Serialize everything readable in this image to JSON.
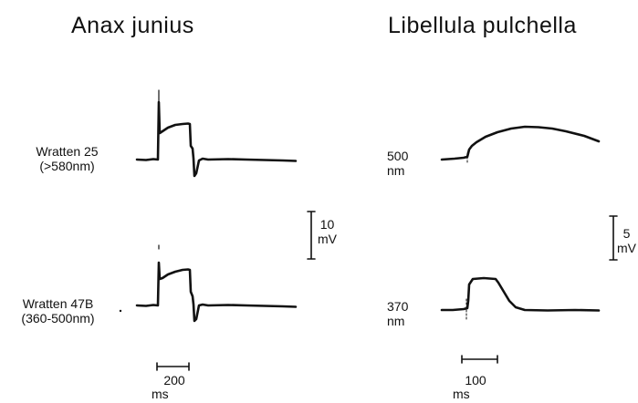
{
  "panels": {
    "left": {
      "title": "Anax junius",
      "top_trace_label_line1": "Wratten 25",
      "top_trace_label_line2": "(>580nm)",
      "bottom_trace_label_line1": "Wratten 47B",
      "bottom_trace_label_line2": "(360-500nm)",
      "voltage_scale_value": "10",
      "voltage_scale_unit": "mV",
      "time_scale_value": "200",
      "time_scale_unit": "ms"
    },
    "right": {
      "title": "Libellula pulchella",
      "top_trace_label_line1": "500",
      "top_trace_label_line2": "nm",
      "bottom_trace_label_line1": "370",
      "bottom_trace_label_line2": "nm",
      "voltage_scale_value": "5",
      "voltage_scale_unit": "mV",
      "time_scale_value": "100",
      "time_scale_unit": "ms"
    }
  },
  "colors": {
    "ink": "#111111",
    "background": "#ffffff"
  }
}
